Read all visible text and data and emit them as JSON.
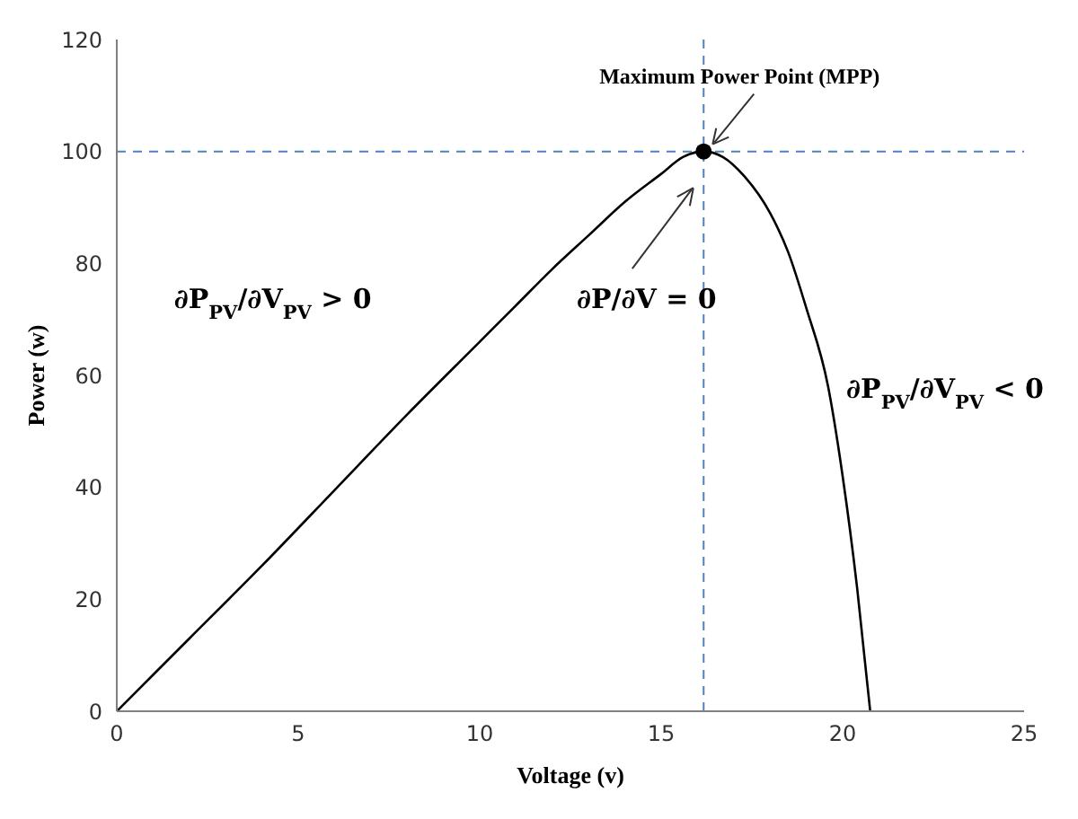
{
  "chart_data": {
    "type": "line",
    "xlabel": "Voltage (v)",
    "ylabel": "Power (w)",
    "xlim": [
      0,
      25
    ],
    "xticks": [
      0,
      5,
      10,
      15,
      20,
      25
    ],
    "ylim": [
      0,
      120
    ],
    "yticks": [
      0,
      20,
      40,
      60,
      80,
      100,
      120
    ],
    "grid": false,
    "series": [
      {
        "color": "#000000",
        "marker": "none",
        "x": [
          0,
          2,
          4,
          6,
          8,
          10,
          11,
          12,
          13,
          14,
          15,
          15.6,
          16.17,
          16.7,
          17.3,
          18,
          18.5,
          19,
          19.6,
          20,
          20.4,
          20.76
        ],
        "values": [
          0,
          13,
          26,
          39.5,
          53,
          66,
          72.5,
          79,
          85,
          91,
          96,
          99,
          100,
          99,
          95.5,
          89,
          82,
          72,
          58,
          42,
          22,
          0
        ]
      },
      {
        "type": "scatter",
        "color": "#000000",
        "marker": "circle",
        "x": [
          16.17
        ],
        "values": [
          100
        ]
      }
    ],
    "ref_lines": [
      {
        "axis": "y",
        "value": 100,
        "color": "#4f81bd",
        "line_style": "dashed"
      },
      {
        "axis": "x",
        "value": 16.17,
        "color": "#4f81bd",
        "line_style": "dashed"
      }
    ],
    "annotations": [
      {
        "text": "Maximum Power Point (MPP)",
        "x": 16.17,
        "y": 100
      },
      "∂P/∂V = 0",
      "∂P$_{PV}$/∂V$_{PV}$ > 0",
      "∂P$_{PV}$/∂V$_{PV}$ < 0"
    ]
  }
}
